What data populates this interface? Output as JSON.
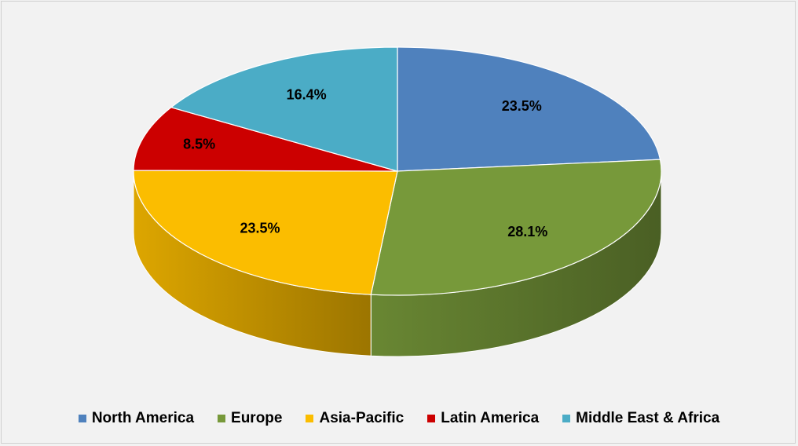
{
  "chart_data": {
    "type": "pie",
    "title": "",
    "style": "3d",
    "legend_position": "bottom",
    "slices": [
      {
        "name": "North America",
        "value": 23.5,
        "label": "23.5%",
        "color": "#4f81bd"
      },
      {
        "name": "Europe",
        "value": 28.1,
        "label": "28.1%",
        "color": "#77993a"
      },
      {
        "name": "Asia-Pacific",
        "value": 23.5,
        "label": "23.5%",
        "color": "#fbbd00"
      },
      {
        "name": "Latin America",
        "value": 8.5,
        "label": "8.5%",
        "color": "#cc0000"
      },
      {
        "name": "Middle East & Africa",
        "value": 16.4,
        "label": "16.4%",
        "color": "#4bacc6"
      }
    ]
  }
}
